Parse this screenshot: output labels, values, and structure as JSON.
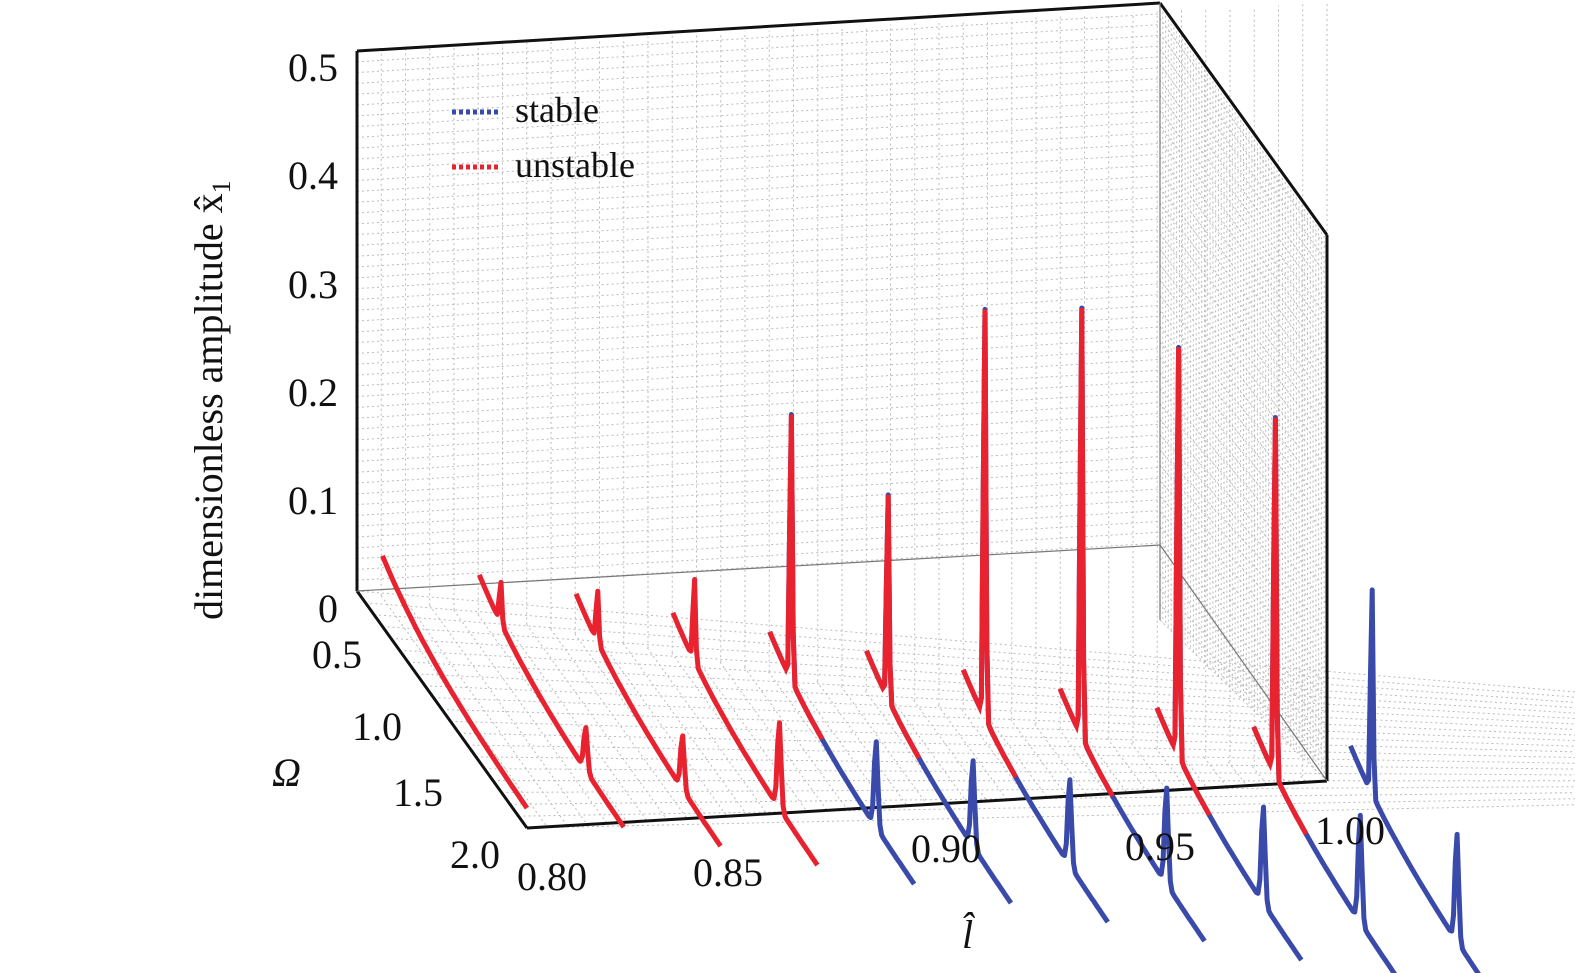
{
  "chart_data": {
    "type": "line",
    "projection": "3d",
    "xlabel": "l̂",
    "ylabel": "Ω",
    "zlabel": "dimensionless amplitude x̂",
    "zlabel_subscript": "1",
    "xlim": [
      0.8,
      1.0
    ],
    "ylim": [
      0,
      2.0
    ],
    "zlim": [
      0,
      0.5
    ],
    "grid": true,
    "legend_position": "top-left",
    "x_ticks": [
      "0.80",
      "0.85",
      "0.90",
      "0.95",
      "1.00"
    ],
    "y_ticks": [
      "0.5",
      "1.0",
      "1.5",
      "2.0"
    ],
    "z_ticks": [
      "0",
      "0.1",
      "0.2",
      "0.3",
      "0.4",
      "0.5"
    ],
    "legend": [
      {
        "label": "stable",
        "color": "#3a4aaa"
      },
      {
        "label": "unstable",
        "color": "#e8222e"
      }
    ],
    "colors": {
      "stable": "#3a4aaa",
      "unstable": "#e8222e",
      "grid": "#bbbbbb",
      "frame": "#111111"
    },
    "omega": [
      0.0,
      0.1,
      0.2,
      0.3,
      0.4,
      0.5,
      0.6,
      0.7,
      0.8,
      0.9,
      1.0,
      1.1,
      1.2,
      1.3,
      1.4,
      1.5,
      1.6,
      1.7,
      1.8,
      1.9,
      2.0
    ],
    "series": [
      {
        "l": 0.8,
        "peak1": 0.0,
        "peak2": 0.0,
        "state": "unstable"
      },
      {
        "l": 0.82,
        "peak1": 0.04,
        "peak2": 0.04,
        "state": "unstable"
      },
      {
        "l": 0.84,
        "peak1": 0.05,
        "peak2": 0.05,
        "state": "unstable"
      },
      {
        "l": 0.86,
        "peak1": 0.08,
        "peak2": 0.08,
        "state": "unstable"
      },
      {
        "l": 0.88,
        "peak1": 0.26,
        "peak2": 0.08,
        "state": "mixed"
      },
      {
        "l": 0.9,
        "peak1": 0.2,
        "peak2": 0.08,
        "state": "mixed"
      },
      {
        "l": 0.92,
        "peak1": 0.4,
        "peak2": 0.08,
        "state": "mixed"
      },
      {
        "l": 0.94,
        "peak1": 0.42,
        "peak2": 0.09,
        "state": "mixed"
      },
      {
        "l": 0.96,
        "peak1": 0.4,
        "peak2": 0.09,
        "state": "mixed"
      },
      {
        "l": 0.98,
        "peak1": 0.35,
        "peak2": 0.1,
        "state": "mixed"
      },
      {
        "l": 1.0,
        "peak1": 0.2,
        "peak2": 0.1,
        "state": "stable"
      }
    ]
  }
}
